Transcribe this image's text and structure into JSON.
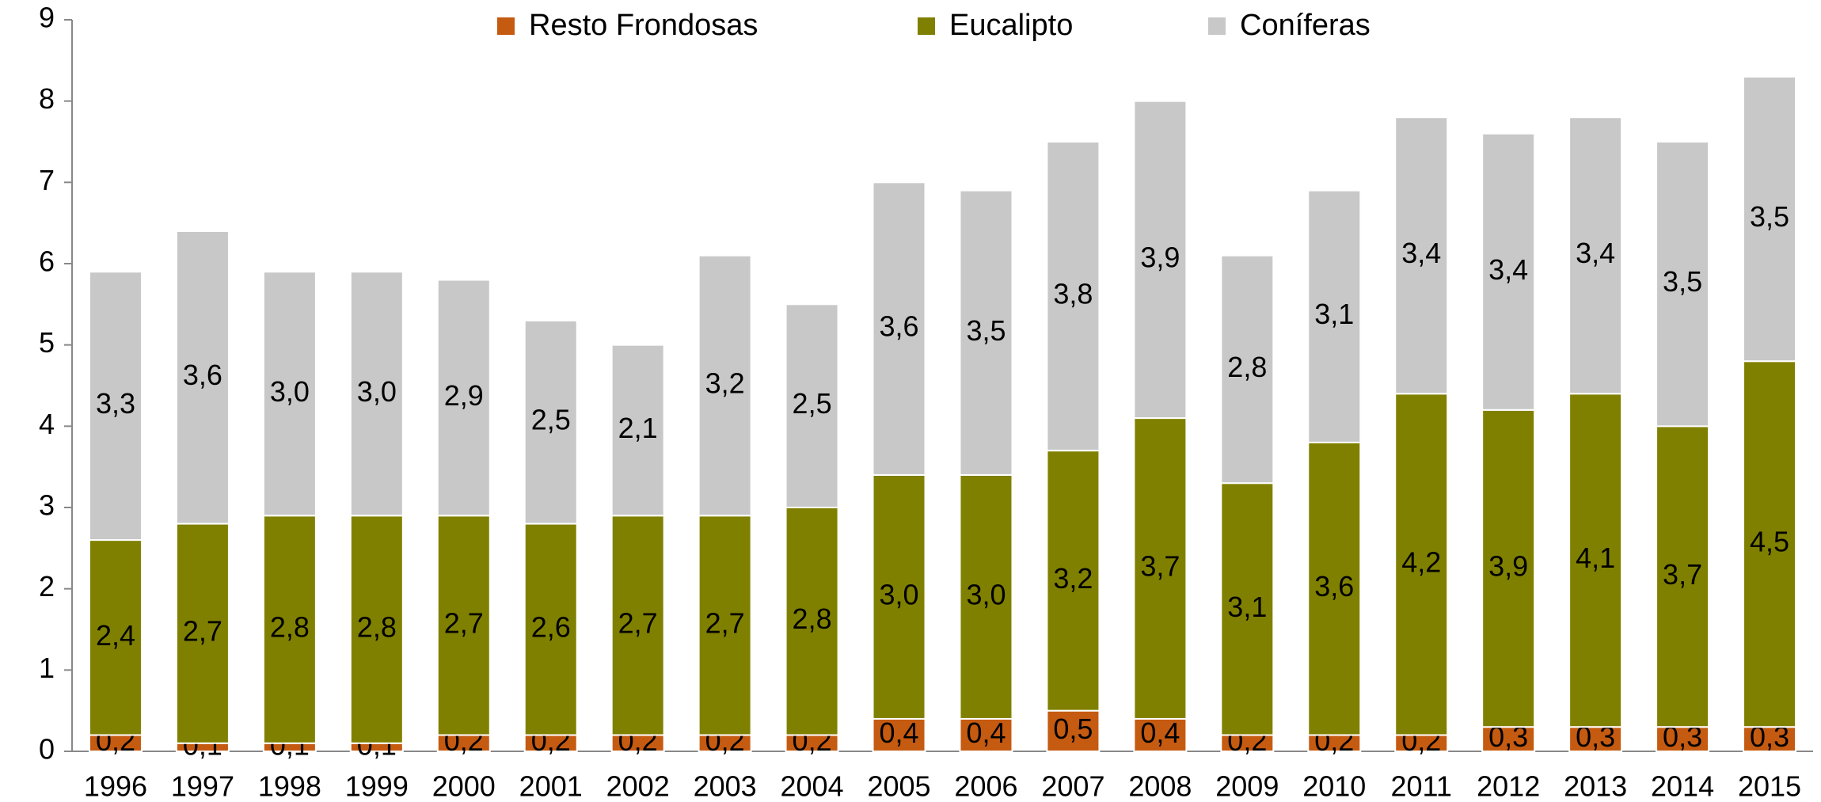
{
  "chart_data": {
    "type": "stacked_bar",
    "categories": [
      "1996",
      "1997",
      "1998",
      "1999",
      "2000",
      "2001",
      "2002",
      "2003",
      "2004",
      "2005",
      "2006",
      "2007",
      "2008",
      "2009",
      "2010",
      "2011",
      "2012",
      "2013",
      "2014",
      "2015"
    ],
    "series": [
      {
        "name": "Resto Frondosas",
        "color": "#c55a11",
        "values": [
          0.2,
          0.1,
          0.1,
          0.1,
          0.2,
          0.2,
          0.2,
          0.2,
          0.2,
          0.4,
          0.4,
          0.5,
          0.4,
          0.2,
          0.2,
          0.2,
          0.3,
          0.3,
          0.3,
          0.3
        ],
        "value_labels": [
          "0,2",
          "0,1",
          "0,1",
          "0,1",
          "0,2",
          "0,2",
          "0,2",
          "0,2",
          "0,2",
          "0,4",
          "0,4",
          "0,5",
          "0,4",
          "0,2",
          "0,2",
          "0,2",
          "0,3",
          "0,3",
          "0,3",
          "0,3"
        ]
      },
      {
        "name": "Eucalipto",
        "color": "#808000",
        "values": [
          2.4,
          2.7,
          2.8,
          2.8,
          2.7,
          2.6,
          2.7,
          2.7,
          2.8,
          3.0,
          3.0,
          3.2,
          3.7,
          3.1,
          3.6,
          4.2,
          3.9,
          4.1,
          3.7,
          4.5
        ],
        "value_labels": [
          "2,4",
          "2,7",
          "2,8",
          "2,8",
          "2,7",
          "2,6",
          "2,7",
          "2,7",
          "2,8",
          "3,0",
          "3,0",
          "3,2",
          "3,7",
          "3,1",
          "3,6",
          "4,2",
          "3,9",
          "4,1",
          "3,7",
          "4,5"
        ]
      },
      {
        "name": "Coníferas",
        "color": "#c8c8c8",
        "values": [
          3.3,
          3.6,
          3.0,
          3.0,
          2.9,
          2.5,
          2.1,
          3.2,
          2.5,
          3.6,
          3.5,
          3.8,
          3.9,
          2.8,
          3.1,
          3.4,
          3.4,
          3.4,
          3.5,
          3.5
        ],
        "value_labels": [
          "3,3",
          "3,6",
          "3,0",
          "3,0",
          "2,9",
          "2,5",
          "2,1",
          "3,2",
          "2,5",
          "3,6",
          "3,5",
          "3,8",
          "3,9",
          "2,8",
          "3,1",
          "3,4",
          "3,4",
          "3,4",
          "3,5",
          "3,5"
        ]
      }
    ],
    "ylim": [
      0,
      9
    ],
    "yticks": [
      0,
      1,
      2,
      3,
      4,
      5,
      6,
      7,
      8,
      9
    ],
    "grid": false,
    "legend": "top"
  }
}
